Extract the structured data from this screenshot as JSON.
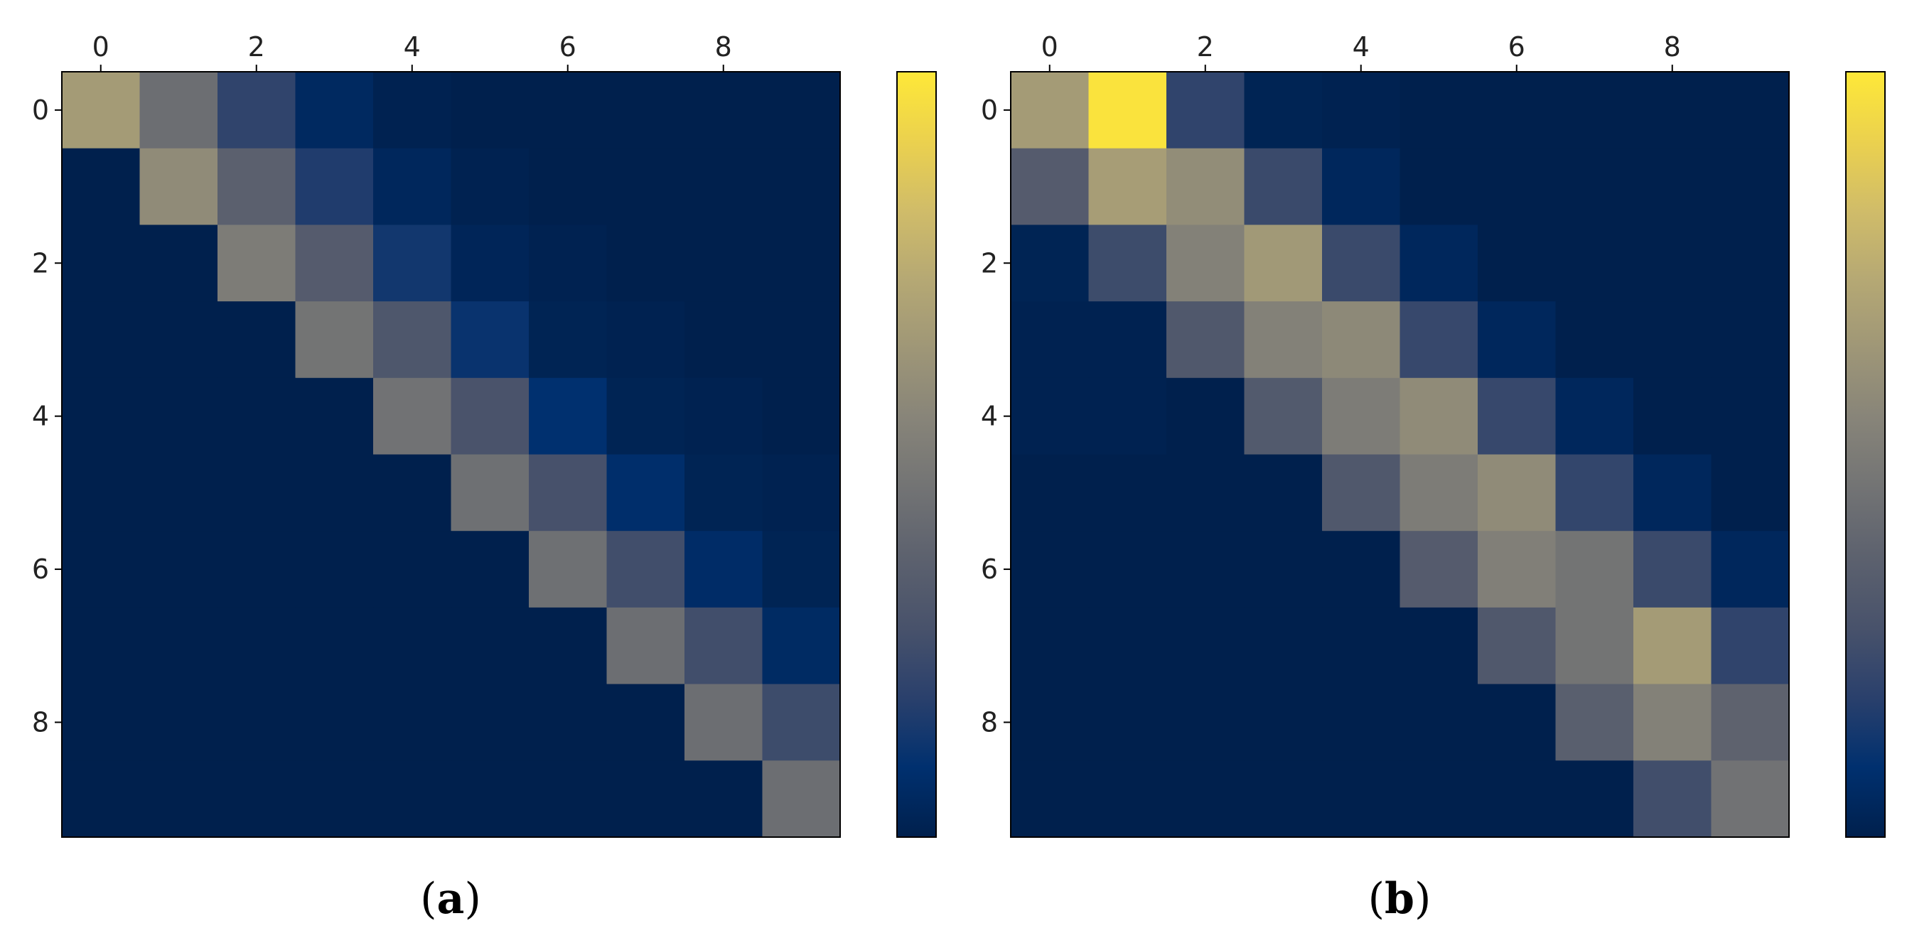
{
  "colormap": {
    "name": "cividis",
    "stops": [
      "#00204d",
      "#00306f",
      "#2a406c",
      "#48526b",
      "#5c616e",
      "#727374",
      "#878479",
      "#9e9677",
      "#b5a874",
      "#d0bc69",
      "#ebd14e",
      "#fee838"
    ]
  },
  "chart_data": [
    {
      "type": "heatmap",
      "title": "",
      "xlabel": "",
      "ylabel": "",
      "caption": {
        "open": "(",
        "letter": "a",
        "close": ")"
      },
      "x_ticks": [
        0,
        2,
        4,
        6,
        8
      ],
      "y_ticks": [
        0,
        2,
        4,
        6,
        8
      ],
      "x_tick_position": "top",
      "colorbar": true,
      "colorbar_tick_labels": false,
      "grid": false,
      "rows": [
        [
          0.66,
          0.43,
          0.2,
          0.05,
          0.01,
          0.0,
          0.0,
          0.0,
          0.0,
          0.0
        ],
        [
          0.0,
          0.58,
          0.36,
          0.16,
          0.04,
          0.01,
          0.0,
          0.0,
          0.0,
          0.0
        ],
        [
          0.0,
          0.0,
          0.5,
          0.33,
          0.13,
          0.03,
          0.01,
          0.0,
          0.0,
          0.0
        ],
        [
          0.0,
          0.0,
          0.0,
          0.46,
          0.3,
          0.11,
          0.02,
          0.01,
          0.0,
          0.0
        ],
        [
          0.0,
          0.0,
          0.0,
          0.0,
          0.45,
          0.28,
          0.09,
          0.02,
          0.01,
          0.0
        ],
        [
          0.0,
          0.0,
          0.0,
          0.0,
          0.0,
          0.44,
          0.27,
          0.08,
          0.02,
          0.01
        ],
        [
          0.0,
          0.0,
          0.0,
          0.0,
          0.0,
          0.0,
          0.44,
          0.25,
          0.07,
          0.02
        ],
        [
          0.0,
          0.0,
          0.0,
          0.0,
          0.0,
          0.0,
          0.0,
          0.43,
          0.25,
          0.06
        ],
        [
          0.0,
          0.0,
          0.0,
          0.0,
          0.0,
          0.0,
          0.0,
          0.0,
          0.43,
          0.24
        ],
        [
          0.0,
          0.0,
          0.0,
          0.0,
          0.0,
          0.0,
          0.0,
          0.0,
          0.0,
          0.43
        ]
      ]
    },
    {
      "type": "heatmap",
      "title": "",
      "xlabel": "",
      "ylabel": "",
      "caption": {
        "open": "(",
        "letter": "b",
        "close": ")"
      },
      "x_ticks": [
        0,
        2,
        4,
        6,
        8
      ],
      "y_ticks": [
        0,
        2,
        4,
        6,
        8
      ],
      "x_tick_position": "top",
      "colorbar": true,
      "colorbar_tick_labels": false,
      "grid": false,
      "rows": [
        [
          0.66,
          0.98,
          0.2,
          0.02,
          0.01,
          0.0,
          0.0,
          0.0,
          0.0,
          0.0
        ],
        [
          0.33,
          0.67,
          0.59,
          0.23,
          0.04,
          0.0,
          0.0,
          0.0,
          0.0,
          0.0
        ],
        [
          0.02,
          0.24,
          0.53,
          0.65,
          0.23,
          0.04,
          0.0,
          0.0,
          0.0,
          0.0
        ],
        [
          0.01,
          0.01,
          0.31,
          0.53,
          0.57,
          0.22,
          0.04,
          0.0,
          0.0,
          0.0
        ],
        [
          0.01,
          0.01,
          0.0,
          0.32,
          0.5,
          0.58,
          0.22,
          0.04,
          0.0,
          0.0
        ],
        [
          0.0,
          0.0,
          0.0,
          0.0,
          0.31,
          0.5,
          0.58,
          0.21,
          0.04,
          0.0
        ],
        [
          0.0,
          0.0,
          0.0,
          0.0,
          0.0,
          0.33,
          0.52,
          0.46,
          0.23,
          0.04
        ],
        [
          0.0,
          0.0,
          0.0,
          0.0,
          0.0,
          0.0,
          0.31,
          0.46,
          0.66,
          0.2
        ],
        [
          0.0,
          0.0,
          0.0,
          0.0,
          0.0,
          0.0,
          0.0,
          0.35,
          0.53,
          0.37
        ],
        [
          0.0,
          0.0,
          0.0,
          0.0,
          0.0,
          0.0,
          0.0,
          0.0,
          0.25,
          0.45
        ]
      ]
    }
  ]
}
